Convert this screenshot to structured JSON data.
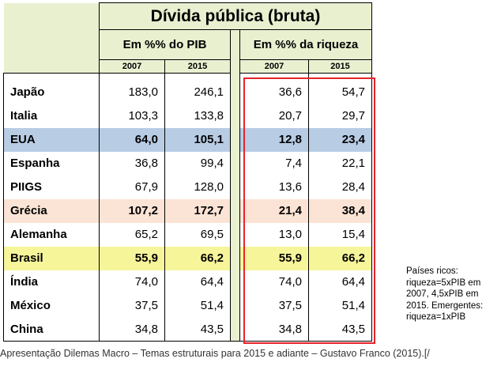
{
  "table": {
    "title": "Dívida pública (bruta)",
    "group_pib": "Em %% do PIB",
    "group_riqueza": "Em %% da riqueza",
    "years": [
      "2007",
      "2015",
      "2007",
      "2015"
    ],
    "rows": [
      {
        "country": "Japão",
        "v": [
          "183,0",
          "246,1",
          "36,6",
          "54,7"
        ]
      },
      {
        "country": "Italia",
        "v": [
          "103,3",
          "133,8",
          "20,7",
          "29,7"
        ]
      },
      {
        "country": "EUA",
        "v": [
          "64,0",
          "105,1",
          "12,8",
          "23,4"
        ]
      },
      {
        "country": "Espanha",
        "v": [
          "36,8",
          "99,4",
          "7,4",
          "22,1"
        ]
      },
      {
        "country": "PIIGS",
        "v": [
          "67,9",
          "128,0",
          "13,6",
          "28,4"
        ]
      },
      {
        "country": "Grécia",
        "v": [
          "107,2",
          "172,7",
          "21,4",
          "38,4"
        ]
      },
      {
        "country": "Alemanha",
        "v": [
          "65,2",
          "69,5",
          "13,0",
          "15,4"
        ]
      },
      {
        "country": "Brasil",
        "v": [
          "55,9",
          "66,2",
          "55,9",
          "66,2"
        ]
      },
      {
        "country": "Índia",
        "v": [
          "74,0",
          "64,4",
          "74,0",
          "64,4"
        ]
      },
      {
        "country": "México",
        "v": [
          "37,5",
          "51,4",
          "37,5",
          "51,4"
        ]
      },
      {
        "country": "China",
        "v": [
          "34,8",
          "43,5",
          "34,8",
          "43,5"
        ]
      }
    ]
  },
  "colors": {
    "highlight_box": "#e8232a",
    "eua_row": "#b8cce4",
    "grecia_row": "#fbe4d5",
    "brasil_row": "#f7f59a",
    "header_bg": "#e8f0d0"
  },
  "note": "Países ricos: riqueza=5xPIB em 2007, 4,5xPIB em 2015. Emergentes: riqueza=1xPIB",
  "caption": "Apresentação Dilemas Macro – Temas estruturais para 2015 e adiante – Gustavo Franco (2015).[/"
}
